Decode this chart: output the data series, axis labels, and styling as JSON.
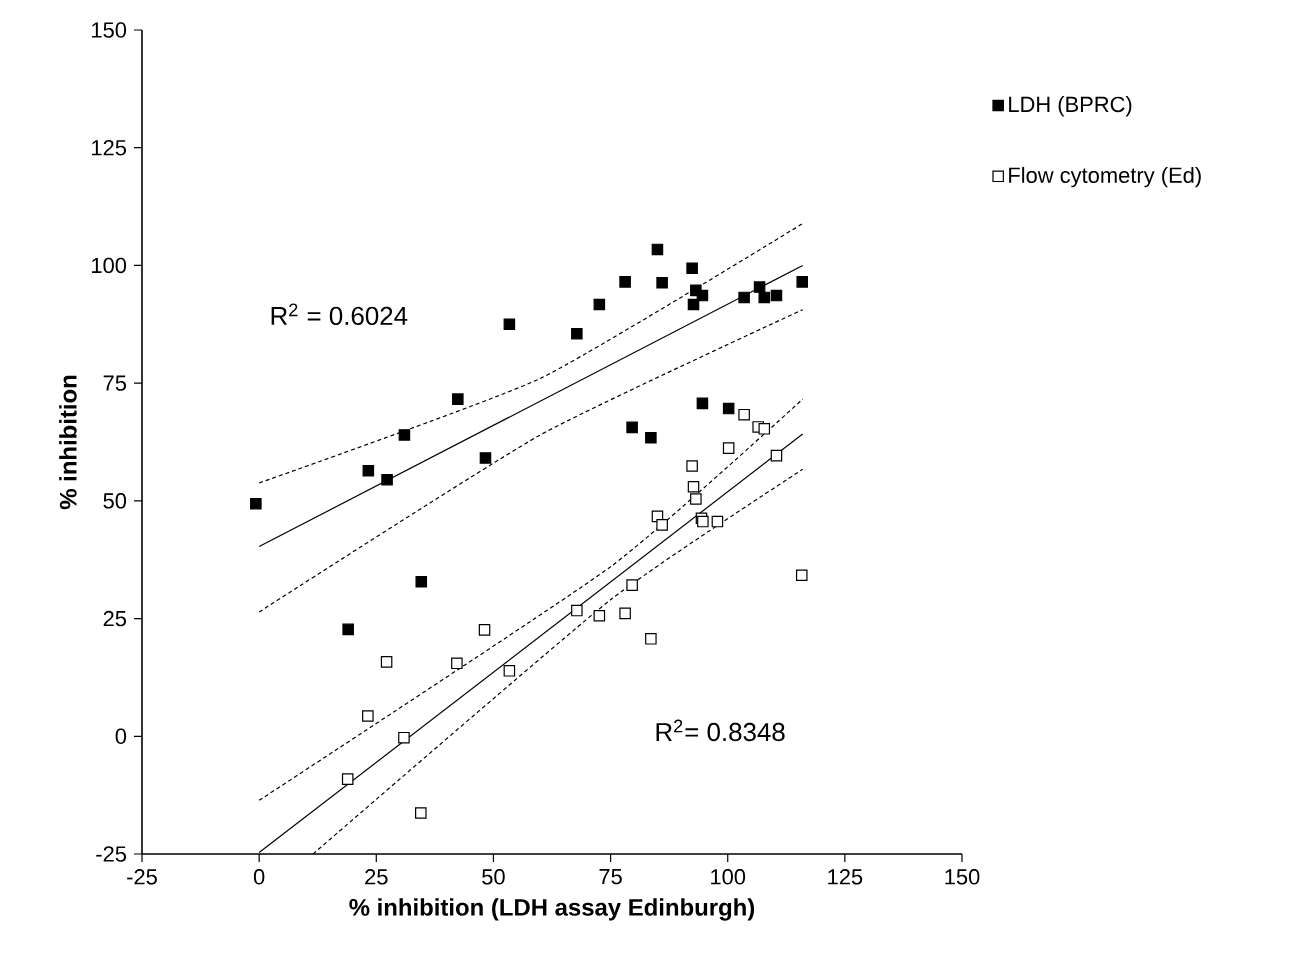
{
  "chart_data": {
    "type": "scatter",
    "xlabel": "% inhibition (LDH assay Edinburgh)",
    "ylabel": "% inhibition",
    "xlim": [
      -25,
      150
    ],
    "ylim": [
      -25,
      150
    ],
    "xticks": [
      -25,
      0,
      25,
      50,
      75,
      100,
      125,
      150
    ],
    "yticks": [
      -25,
      0,
      25,
      50,
      75,
      100,
      125,
      150
    ],
    "grid": false,
    "legend": "right",
    "marker": "square",
    "series": [
      {
        "name": "LDH (BPRC)",
        "color": "#000000",
        "x": [
          -0.7,
          19.0,
          23.3,
          27.3,
          31.0,
          34.6,
          42.4,
          48.3,
          53.4,
          67.8,
          72.6,
          78.1,
          85.0,
          86.0,
          92.4,
          93.2,
          94.6,
          92.7,
          103.5,
          106.8,
          107.8,
          110.4,
          115.9,
          79.6,
          83.6,
          94.6,
          100.2
        ],
        "values": [
          49.4,
          22.7,
          56.4,
          54.5,
          64.0,
          32.8,
          71.6,
          59.1,
          87.5,
          85.5,
          91.7,
          96.5,
          103.4,
          96.3,
          99.4,
          94.7,
          93.6,
          91.7,
          93.2,
          95.4,
          93.2,
          93.6,
          96.5,
          65.6,
          63.4,
          70.7,
          69.6
        ]
      },
      {
        "name": "Flow cytometry (Ed)",
        "color": "#000000",
        "x": [
          18.9,
          23.2,
          27.2,
          30.9,
          34.5,
          42.2,
          48.1,
          53.4,
          67.8,
          72.6,
          78.1,
          79.6,
          83.6,
          85.0,
          86.0,
          92.4,
          92.7,
          93.2,
          94.4,
          94.7,
          97.8,
          100.2,
          103.5,
          106.5,
          107.8,
          110.4,
          115.8
        ],
        "values": [
          -9.1,
          4.3,
          15.8,
          -0.3,
          -16.3,
          15.5,
          22.6,
          13.9,
          26.7,
          25.6,
          26.1,
          32.1,
          20.7,
          46.7,
          44.9,
          57.4,
          53.0,
          50.4,
          46.3,
          45.6,
          45.6,
          61.2,
          68.3,
          65.7,
          65.3,
          59.6,
          34.2
        ]
      },
      {
        "type": "line",
        "color": "#000000",
        "marker": "none",
        "line_style": "solid",
        "x": [
          0,
          116
        ],
        "values": [
          40.3,
          100
        ]
      },
      {
        "type": "line",
        "color": "#000000",
        "marker": "none",
        "line_style": "dashed",
        "x": [
          0,
          60,
          116
        ],
        "values": [
          53.8,
          76,
          108.9
        ]
      },
      {
        "type": "line",
        "color": "#000000",
        "marker": "none",
        "line_style": "dashed",
        "x": [
          0,
          60,
          116
        ],
        "values": [
          26.4,
          64,
          90.6
        ]
      },
      {
        "type": "line",
        "color": "#000000",
        "marker": "none",
        "line_style": "solid",
        "x": [
          0,
          116
        ],
        "values": [
          -24.7,
          64.2
        ]
      },
      {
        "type": "line",
        "color": "#000000",
        "marker": "none",
        "line_style": "dashed",
        "x": [
          0,
          75,
          116
        ],
        "values": [
          -13.6,
          36,
          71.6
        ]
      },
      {
        "type": "line",
        "color": "#000000",
        "marker": "none",
        "line_style": "dashed",
        "x": [
          11.5,
          75,
          116
        ],
        "values": [
          -25,
          29,
          56.7
        ]
      }
    ],
    "annotations": [
      "R$^{2}$ = 0.6024",
      "R$^{2}$= 0.8348"
    ]
  }
}
